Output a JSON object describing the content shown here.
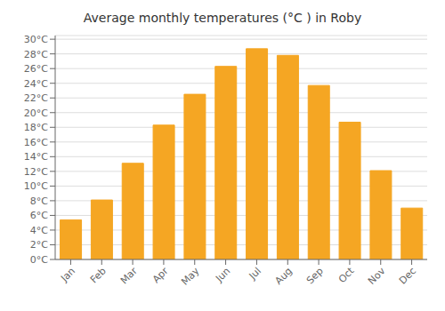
{
  "chart_data": {
    "type": "bar",
    "title": "Average monthly temperatures (°C ) in Roby",
    "categories": [
      "Jan",
      "Feb",
      "Mar",
      "Apr",
      "May",
      "Jun",
      "Jul",
      "Aug",
      "Sep",
      "Oct",
      "Nov",
      "Dec"
    ],
    "values": [
      5.4,
      8.1,
      13.1,
      18.3,
      22.5,
      26.3,
      28.7,
      27.8,
      23.7,
      18.7,
      12.1,
      7.0
    ],
    "color": "#F5A623",
    "ylim": [
      0,
      30.5
    ],
    "yticks": [
      {
        "value": 0,
        "label": "0°C"
      },
      {
        "value": 2,
        "label": "2°C"
      },
      {
        "value": 4,
        "label": "4°C"
      },
      {
        "value": 6,
        "label": "6°C"
      },
      {
        "value": 8,
        "label": "8°C"
      },
      {
        "value": 10,
        "label": "10°C"
      },
      {
        "value": 12,
        "label": "12°C"
      },
      {
        "value": 14,
        "label": "14°C"
      },
      {
        "value": 16,
        "label": "16°C"
      },
      {
        "value": 18,
        "label": "18°C"
      },
      {
        "value": 20,
        "label": "20°C"
      },
      {
        "value": 22,
        "label": "22°C"
      },
      {
        "value": 24,
        "label": "24°C"
      },
      {
        "value": 26,
        "label": "26°C"
      },
      {
        "value": 28,
        "label": "28°C"
      },
      {
        "value": 30,
        "label": "30°C"
      }
    ],
    "grid": true
  }
}
